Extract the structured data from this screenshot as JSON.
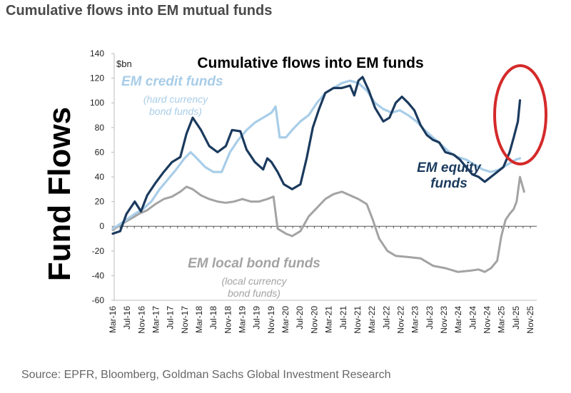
{
  "header": {
    "title": "Cumulative flows into EM mutual funds"
  },
  "source": "Source: EPFR, Bloomberg, Goldman Sachs Global Investment Research",
  "colors": {
    "credit": "#a8cde8",
    "equity": "#1b3a5e",
    "local": "#a3a3a3",
    "highlight": "#d42a2a"
  },
  "chart_data": {
    "type": "line",
    "title": "Cumulative flows into EM funds",
    "unit_label": "$bn",
    "ylabel": "Fund Flows",
    "xlabel": "",
    "ylim": [
      -60,
      140
    ],
    "yticks": [
      "140",
      "120",
      "100",
      "80",
      "60",
      "40",
      "20",
      "0",
      "-20",
      "-40",
      "-60"
    ],
    "xlim": [
      2016.17,
      2026.25
    ],
    "x_tick_labels": [
      "Mar-16",
      "Jul-16",
      "Nov-16",
      "Mar-17",
      "Jul-17",
      "Nov-17",
      "Mar-18",
      "Jul-18",
      "Nov-18",
      "Mar-19",
      "Jul-19",
      "Nov-19",
      "Mar-20",
      "Jul-20",
      "Nov-20",
      "Mar-21",
      "Jul-21",
      "Nov-21",
      "Mar-22",
      "Jul-22",
      "Nov-22",
      "Mar-23",
      "Jul-23",
      "Nov-23",
      "Mar-24",
      "Jul-24",
      "Nov-24",
      "Mar-25",
      "Jul-25",
      "Nov-25"
    ],
    "annotations": {
      "credit_label": "EM credit funds",
      "credit_sub1": "(hard currency",
      "credit_sub2": "bond funds)",
      "equity_label1": "EM equity",
      "equity_label2": "funds",
      "local_label": "EM local bond funds",
      "local_sub1": "(local currency",
      "local_sub2": "bond funds)"
    },
    "series": [
      {
        "name": "EM credit funds",
        "points": [
          [
            2016.17,
            -2
          ],
          [
            2016.4,
            3
          ],
          [
            2016.7,
            10
          ],
          [
            2016.9,
            14
          ],
          [
            2017.1,
            20
          ],
          [
            2017.3,
            30
          ],
          [
            2017.5,
            38
          ],
          [
            2017.7,
            46
          ],
          [
            2017.9,
            55
          ],
          [
            2018.05,
            60
          ],
          [
            2018.2,
            55
          ],
          [
            2018.4,
            48
          ],
          [
            2018.6,
            44
          ],
          [
            2018.8,
            44
          ],
          [
            2019.0,
            60
          ],
          [
            2019.2,
            70
          ],
          [
            2019.4,
            78
          ],
          [
            2019.6,
            84
          ],
          [
            2019.8,
            88
          ],
          [
            2020.0,
            92
          ],
          [
            2020.1,
            97
          ],
          [
            2020.2,
            72
          ],
          [
            2020.35,
            72
          ],
          [
            2020.5,
            78
          ],
          [
            2020.7,
            85
          ],
          [
            2020.9,
            90
          ],
          [
            2021.1,
            100
          ],
          [
            2021.3,
            108
          ],
          [
            2021.5,
            112
          ],
          [
            2021.7,
            116
          ],
          [
            2021.9,
            118
          ],
          [
            2022.1,
            116
          ],
          [
            2022.3,
            110
          ],
          [
            2022.5,
            100
          ],
          [
            2022.7,
            95
          ],
          [
            2022.9,
            92
          ],
          [
            2023.1,
            94
          ],
          [
            2023.3,
            90
          ],
          [
            2023.5,
            85
          ],
          [
            2023.7,
            78
          ],
          [
            2023.9,
            72
          ],
          [
            2024.1,
            66
          ],
          [
            2024.3,
            60
          ],
          [
            2024.5,
            56
          ],
          [
            2024.7,
            54
          ],
          [
            2024.9,
            50
          ],
          [
            2025.1,
            46
          ],
          [
            2025.3,
            44
          ],
          [
            2025.5,
            46
          ],
          [
            2025.7,
            50
          ],
          [
            2025.9,
            54
          ],
          [
            2026.0,
            55
          ]
        ]
      },
      {
        "name": "EM equity funds",
        "points": [
          [
            2016.17,
            -6
          ],
          [
            2016.35,
            -4
          ],
          [
            2016.5,
            10
          ],
          [
            2016.7,
            20
          ],
          [
            2016.85,
            12
          ],
          [
            2017.0,
            25
          ],
          [
            2017.2,
            35
          ],
          [
            2017.4,
            44
          ],
          [
            2017.6,
            52
          ],
          [
            2017.8,
            56
          ],
          [
            2017.95,
            75
          ],
          [
            2018.1,
            88
          ],
          [
            2018.3,
            78
          ],
          [
            2018.5,
            65
          ],
          [
            2018.7,
            60
          ],
          [
            2018.9,
            65
          ],
          [
            2019.05,
            78
          ],
          [
            2019.25,
            77
          ],
          [
            2019.4,
            62
          ],
          [
            2019.6,
            52
          ],
          [
            2019.8,
            46
          ],
          [
            2019.9,
            55
          ],
          [
            2020.0,
            52
          ],
          [
            2020.15,
            44
          ],
          [
            2020.3,
            34
          ],
          [
            2020.5,
            30
          ],
          [
            2020.7,
            34
          ],
          [
            2020.85,
            55
          ],
          [
            2021.0,
            80
          ],
          [
            2021.15,
            95
          ],
          [
            2021.3,
            108
          ],
          [
            2021.5,
            112
          ],
          [
            2021.7,
            112
          ],
          [
            2021.9,
            114
          ],
          [
            2022.0,
            106
          ],
          [
            2022.1,
            118
          ],
          [
            2022.2,
            121
          ],
          [
            2022.35,
            110
          ],
          [
            2022.5,
            96
          ],
          [
            2022.7,
            85
          ],
          [
            2022.85,
            88
          ],
          [
            2023.0,
            100
          ],
          [
            2023.15,
            105
          ],
          [
            2023.3,
            100
          ],
          [
            2023.45,
            94
          ],
          [
            2023.6,
            82
          ],
          [
            2023.75,
            74
          ],
          [
            2023.9,
            70
          ],
          [
            2024.05,
            68
          ],
          [
            2024.2,
            60
          ],
          [
            2024.4,
            58
          ],
          [
            2024.55,
            54
          ],
          [
            2024.7,
            48
          ],
          [
            2024.85,
            42
          ],
          [
            2025.0,
            40
          ],
          [
            2025.15,
            36
          ],
          [
            2025.3,
            40
          ],
          [
            2025.45,
            44
          ],
          [
            2025.6,
            48
          ],
          [
            2025.75,
            60
          ],
          [
            2025.85,
            72
          ],
          [
            2025.95,
            85
          ],
          [
            2026.0,
            102
          ]
        ]
      },
      {
        "name": "EM local bond funds",
        "points": [
          [
            2016.17,
            -3
          ],
          [
            2016.4,
            2
          ],
          [
            2016.6,
            6
          ],
          [
            2016.8,
            10
          ],
          [
            2017.0,
            13
          ],
          [
            2017.2,
            18
          ],
          [
            2017.4,
            22
          ],
          [
            2017.6,
            24
          ],
          [
            2017.8,
            28
          ],
          [
            2017.95,
            32
          ],
          [
            2018.1,
            30
          ],
          [
            2018.3,
            25
          ],
          [
            2018.5,
            22
          ],
          [
            2018.7,
            20
          ],
          [
            2018.9,
            19
          ],
          [
            2019.1,
            20
          ],
          [
            2019.3,
            22
          ],
          [
            2019.5,
            20
          ],
          [
            2019.7,
            20
          ],
          [
            2019.9,
            22
          ],
          [
            2020.05,
            24
          ],
          [
            2020.15,
            -2
          ],
          [
            2020.35,
            -6
          ],
          [
            2020.5,
            -8
          ],
          [
            2020.7,
            -4
          ],
          [
            2020.9,
            8
          ],
          [
            2021.1,
            15
          ],
          [
            2021.3,
            22
          ],
          [
            2021.5,
            26
          ],
          [
            2021.7,
            28
          ],
          [
            2021.9,
            25
          ],
          [
            2022.1,
            22
          ],
          [
            2022.3,
            18
          ],
          [
            2022.45,
            5
          ],
          [
            2022.6,
            -10
          ],
          [
            2022.8,
            -20
          ],
          [
            2023.0,
            -24
          ],
          [
            2023.3,
            -25
          ],
          [
            2023.6,
            -26
          ],
          [
            2023.9,
            -32
          ],
          [
            2024.2,
            -34
          ],
          [
            2024.5,
            -37
          ],
          [
            2024.8,
            -36
          ],
          [
            2025.0,
            -35
          ],
          [
            2025.15,
            -37
          ],
          [
            2025.3,
            -34
          ],
          [
            2025.45,
            -28
          ],
          [
            2025.55,
            -8
          ],
          [
            2025.65,
            5
          ],
          [
            2025.75,
            10
          ],
          [
            2025.85,
            14
          ],
          [
            2025.92,
            20
          ],
          [
            2026.0,
            40
          ],
          [
            2026.1,
            28
          ]
        ]
      }
    ]
  }
}
